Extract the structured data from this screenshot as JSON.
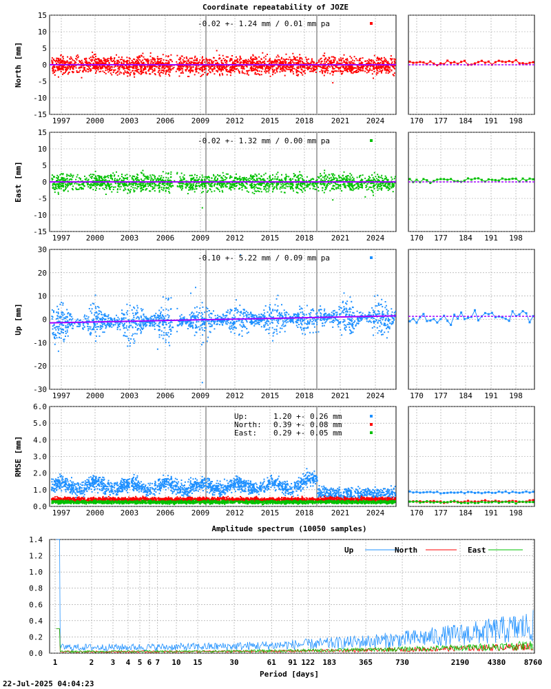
{
  "title": "Coordinate repeatability of JOZE",
  "timestamp": "22-Jul-2025 04:04:23",
  "colors": {
    "north": "#ff0000",
    "east": "#00c000",
    "up": "#1e90ff",
    "trend": "#a000ff",
    "grid": "#999999",
    "marker": "#aaaaaa"
  },
  "year_ticks": [
    "1997",
    "2000",
    "2003",
    "2006",
    "2009",
    "2012",
    "2015",
    "2018",
    "2021",
    "2024"
  ],
  "doy_ticks": [
    "170",
    "177",
    "184",
    "191",
    "198"
  ],
  "panels": [
    {
      "id": "north",
      "ylabel": "North [mm]",
      "annotation": "-0.02 +- 1.24 mm /  0.01 mm pa",
      "ylim": [
        -15,
        15
      ],
      "yticks": [
        "15",
        "10",
        "5",
        "0",
        "-5",
        "-10",
        "-15"
      ]
    },
    {
      "id": "east",
      "ylabel": "East [mm]",
      "annotation": "-0.02 +- 1.32 mm /  0.00 mm pa",
      "ylim": [
        -15,
        15
      ],
      "yticks": [
        "15",
        "10",
        "5",
        "0",
        "-5",
        "-10",
        "-15"
      ]
    },
    {
      "id": "up",
      "ylabel": "Up [mm]",
      "annotation": "-0.10 +- 5.22 mm /  0.09 mm pa",
      "ylim": [
        -30,
        30
      ],
      "yticks": [
        "30",
        "20",
        "10",
        "0",
        "-10",
        "-20",
        "-30"
      ]
    },
    {
      "id": "rmse",
      "ylabel": "RMSE [mm]",
      "ylim": [
        0,
        6
      ],
      "yticks": [
        "6.0",
        "5.0",
        "4.0",
        "3.0",
        "2.0",
        "1.0",
        "0.0"
      ]
    }
  ],
  "rmse_legend": [
    {
      "label": "Up:",
      "value": "1.20 +- 0.26 mm"
    },
    {
      "label": "North:",
      "value": "0.39 +- 0.08 mm"
    },
    {
      "label": "East:",
      "value": "0.29 +- 0.05 mm"
    }
  ],
  "spectrum": {
    "title": "Amplitude spectrum (10050 samples)",
    "xlabel": "Period [days]",
    "ylim": [
      0,
      1.4
    ],
    "yticks": [
      "1.4",
      "1.2",
      "1.0",
      "0.8",
      "0.6",
      "0.4",
      "0.2",
      "0.0"
    ],
    "xticks": [
      "1",
      "2",
      "3",
      "4",
      "5",
      "6",
      "7",
      "10",
      "15",
      "30",
      "61",
      "91",
      "122",
      "183",
      "365",
      "730",
      "2190",
      "4380",
      "8760"
    ],
    "legend": [
      "Up",
      "North",
      "East"
    ]
  },
  "chart_data": [
    {
      "type": "scatter",
      "title": "Coordinate repeatability of JOZE",
      "ylabel": "North [mm]",
      "x_range": [
        "1996",
        "2025"
      ],
      "ylim": [
        -15,
        15
      ],
      "series": [
        {
          "name": "North",
          "stats": "-0.02 +- 1.24 mm /  0.01 mm pa"
        }
      ]
    },
    {
      "type": "scatter",
      "ylabel": "East [mm]",
      "x_range": [
        "1996",
        "2025"
      ],
      "ylim": [
        -15,
        15
      ],
      "series": [
        {
          "name": "East",
          "stats": "-0.02 +- 1.32 mm /  0.00 mm pa"
        }
      ]
    },
    {
      "type": "scatter",
      "ylabel": "Up [mm]",
      "x_range": [
        "1996",
        "2025"
      ],
      "ylim": [
        -30,
        30
      ],
      "series": [
        {
          "name": "Up",
          "stats": "-0.10 +- 5.22 mm /  0.09 mm pa"
        }
      ]
    },
    {
      "type": "scatter",
      "ylabel": "RMSE [mm]",
      "ylim": [
        0,
        6
      ],
      "series": [
        {
          "name": "Up",
          "mean": 1.2,
          "std": 0.26
        },
        {
          "name": "North",
          "mean": 0.39,
          "std": 0.08
        },
        {
          "name": "East",
          "mean": 0.29,
          "std": 0.05
        }
      ]
    },
    {
      "type": "line",
      "title": "Amplitude spectrum (10050 samples)",
      "xlabel": "Period [days]",
      "ylim": [
        0,
        1.4
      ],
      "x_scale": "log",
      "series": [
        {
          "name": "Up"
        },
        {
          "name": "North"
        },
        {
          "name": "East"
        }
      ]
    }
  ]
}
